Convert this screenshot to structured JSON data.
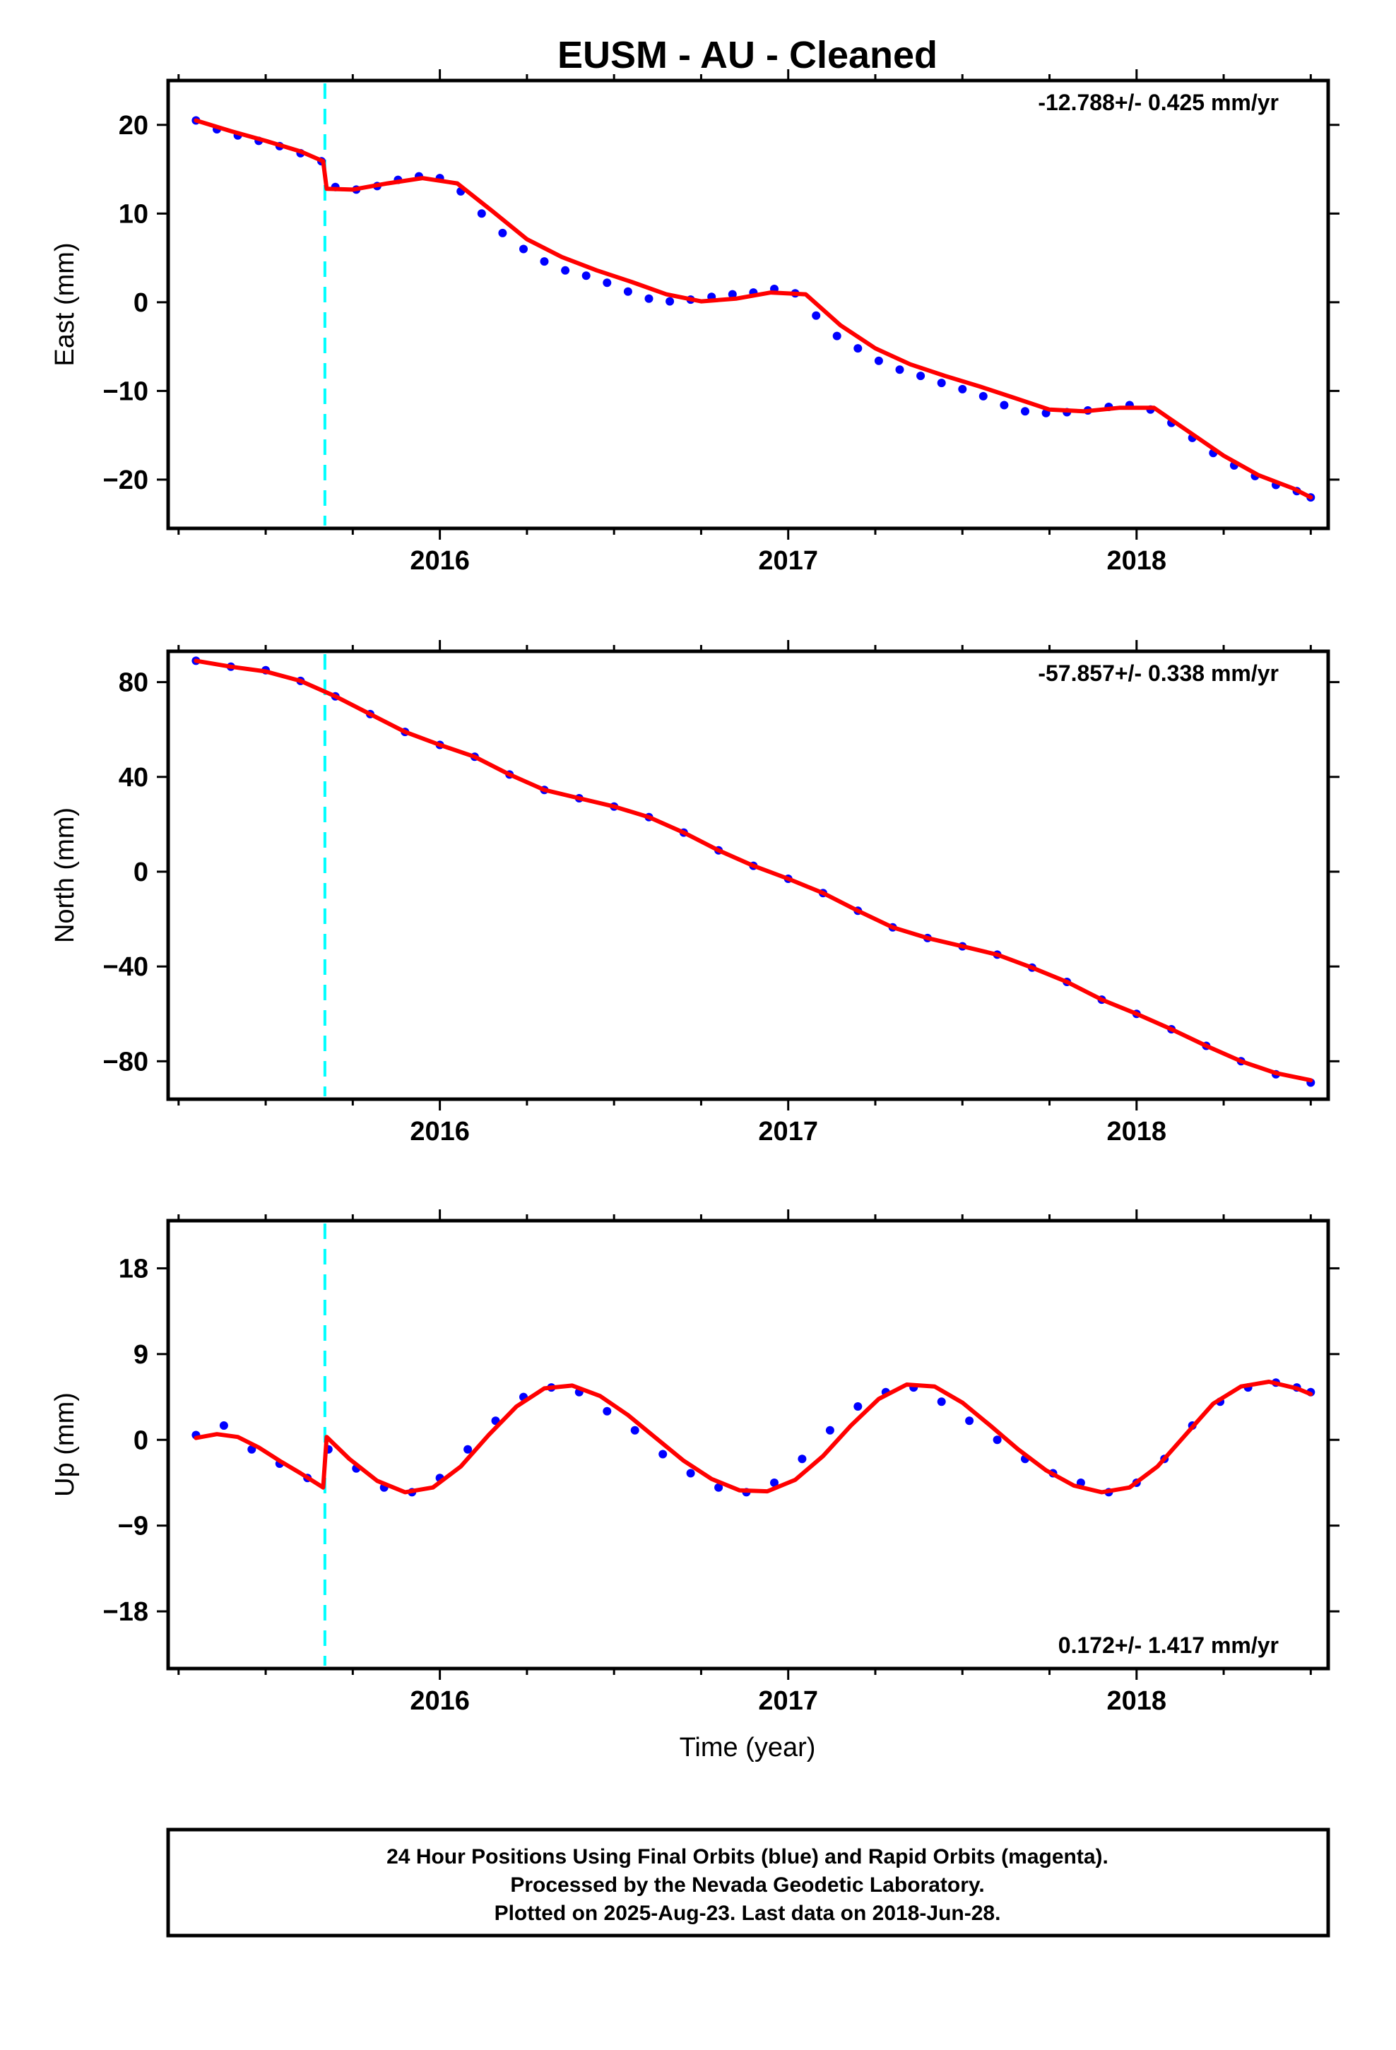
{
  "title": "EUSM  - AU - Cleaned",
  "colors": {
    "final_orbits": "#0000ff",
    "model_fit": "#ff0000",
    "event_line": "#00ffff",
    "frame": "#000000"
  },
  "footer": {
    "line1": "24 Hour Positions Using Final Orbits (blue) and Rapid Orbits (magenta).",
    "line2": "Processed by the Nevada Geodetic Laboratory.",
    "line3": "Plotted on 2025-Aug-23. Last data on 2018-Jun-28."
  },
  "chart_data": [
    {
      "type": "scatter",
      "component": "east",
      "title": "EUSM  - AU - Cleaned",
      "xlabel": "",
      "ylabel": "East (mm)",
      "xlim": [
        2015.22,
        2018.55
      ],
      "ylim": [
        -25.5,
        25
      ],
      "xticks": [
        2016,
        2017,
        2018
      ],
      "xtick_labels": [
        "2016",
        "2017",
        "2018"
      ],
      "yticks": [
        -20,
        -10,
        0,
        10,
        20
      ],
      "ytick_labels": [
        "−20",
        "−10",
        "0",
        "10",
        "20"
      ],
      "rate_text": "-12.788+/- 0.425 mm/yr",
      "rate_position": "top-right",
      "event_line_x": 2015.67,
      "grid": false,
      "series": [
        {
          "name": "Final Orbits",
          "kind": "points",
          "x": [
            2015.3,
            2015.36,
            2015.42,
            2015.48,
            2015.54,
            2015.6,
            2015.66,
            2015.7,
            2015.76,
            2015.82,
            2015.88,
            2015.94,
            2016.0,
            2016.06,
            2016.12,
            2016.18,
            2016.24,
            2016.3,
            2016.36,
            2016.42,
            2016.48,
            2016.54,
            2016.6,
            2016.66,
            2016.72,
            2016.78,
            2016.84,
            2016.9,
            2016.96,
            2017.02,
            2017.08,
            2017.14,
            2017.2,
            2017.26,
            2017.32,
            2017.38,
            2017.44,
            2017.5,
            2017.56,
            2017.62,
            2017.68,
            2017.74,
            2017.8,
            2017.86,
            2017.92,
            2017.98,
            2018.04,
            2018.1,
            2018.16,
            2018.22,
            2018.28,
            2018.34,
            2018.4,
            2018.46,
            2018.5
          ],
          "y": [
            20.5,
            19.5,
            18.8,
            18.2,
            17.6,
            16.8,
            15.9,
            13,
            12.7,
            13.1,
            13.8,
            14.2,
            14,
            12.5,
            10,
            7.8,
            6,
            4.6,
            3.6,
            3,
            2.2,
            1.2,
            0.4,
            0.1,
            0.3,
            0.6,
            0.9,
            1.1,
            1.5,
            1,
            -1.5,
            -3.8,
            -5.2,
            -6.6,
            -7.6,
            -8.3,
            -9.1,
            -9.8,
            -10.6,
            -11.6,
            -12.3,
            -12.5,
            -12.4,
            -12.2,
            -11.8,
            -11.6,
            -12.1,
            -13.6,
            -15.3,
            -17,
            -18.4,
            -19.6,
            -20.6,
            -21.3,
            -22
          ]
        },
        {
          "name": "Model",
          "kind": "line",
          "x": [
            2015.3,
            2015.4,
            2015.5,
            2015.6,
            2015.665,
            2015.675,
            2015.75,
            2015.85,
            2015.95,
            2016.05,
            2016.15,
            2016.25,
            2016.35,
            2016.45,
            2016.55,
            2016.65,
            2016.75,
            2016.85,
            2016.95,
            2017.05,
            2017.15,
            2017.25,
            2017.35,
            2017.45,
            2017.55,
            2017.65,
            2017.75,
            2017.85,
            2017.95,
            2018.05,
            2018.15,
            2018.25,
            2018.35,
            2018.45,
            2018.5
          ],
          "y": [
            20.5,
            19.3,
            18.2,
            17,
            15.9,
            12.8,
            12.7,
            13.4,
            14,
            13.4,
            10.3,
            7.1,
            5.1,
            3.6,
            2.3,
            0.9,
            0.1,
            0.4,
            1.1,
            0.9,
            -2.6,
            -5.2,
            -7,
            -8.3,
            -9.5,
            -10.8,
            -12.1,
            -12.3,
            -11.9,
            -11.9,
            -14.6,
            -17.3,
            -19.5,
            -21,
            -22
          ]
        }
      ]
    },
    {
      "type": "scatter",
      "component": "north",
      "xlabel": "",
      "ylabel": "North (mm)",
      "xlim": [
        2015.22,
        2018.55
      ],
      "ylim": [
        -96,
        93
      ],
      "xticks": [
        2016,
        2017,
        2018
      ],
      "xtick_labels": [
        "2016",
        "2017",
        "2018"
      ],
      "yticks": [
        -80,
        -40,
        0,
        40,
        80
      ],
      "ytick_labels": [
        "−80",
        "−40",
        "0",
        "40",
        "80"
      ],
      "rate_text": "-57.857+/- 0.338 mm/yr",
      "rate_position": "top-right",
      "event_line_x": 2015.67,
      "grid": false,
      "series": [
        {
          "name": "Final Orbits",
          "kind": "points",
          "x": [
            2015.3,
            2015.4,
            2015.5,
            2015.6,
            2015.7,
            2015.8,
            2015.9,
            2016.0,
            2016.1,
            2016.2,
            2016.3,
            2016.4,
            2016.5,
            2016.6,
            2016.7,
            2016.8,
            2016.9,
            2017.0,
            2017.1,
            2017.2,
            2017.3,
            2017.4,
            2017.5,
            2017.6,
            2017.7,
            2017.8,
            2017.9,
            2018.0,
            2018.1,
            2018.2,
            2018.3,
            2018.4,
            2018.5
          ],
          "y": [
            89,
            86.5,
            85,
            80.5,
            74,
            66.5,
            59,
            53.5,
            48.5,
            41,
            34.5,
            31,
            27.5,
            23,
            16.5,
            9,
            2.5,
            -3,
            -9,
            -16.5,
            -23.5,
            -28,
            -31.5,
            -35,
            -40.5,
            -46.5,
            -54,
            -60,
            -66.5,
            -73.5,
            -80,
            -85.5,
            -89
          ]
        },
        {
          "name": "Model",
          "kind": "line",
          "x": [
            2015.3,
            2015.4,
            2015.5,
            2015.6,
            2015.7,
            2015.8,
            2015.9,
            2016.0,
            2016.1,
            2016.2,
            2016.3,
            2016.4,
            2016.5,
            2016.6,
            2016.7,
            2016.8,
            2016.9,
            2017.0,
            2017.1,
            2017.2,
            2017.3,
            2017.4,
            2017.5,
            2017.6,
            2017.7,
            2017.8,
            2017.9,
            2018.0,
            2018.1,
            2018.2,
            2018.3,
            2018.4,
            2018.5
          ],
          "y": [
            89,
            86.5,
            84.5,
            80.5,
            74,
            66.5,
            59,
            53.5,
            48.5,
            41,
            34.5,
            31,
            27.5,
            23,
            16.5,
            9,
            2.5,
            -3,
            -9,
            -16.5,
            -23.5,
            -28,
            -31.5,
            -35,
            -40.5,
            -46.5,
            -54,
            -60,
            -66.5,
            -73.5,
            -80,
            -85,
            -88
          ]
        }
      ]
    },
    {
      "type": "scatter",
      "component": "up",
      "xlabel": "Time (year)",
      "ylabel": "Up (mm)",
      "xlim": [
        2015.22,
        2018.55
      ],
      "ylim": [
        -24,
        23
      ],
      "xticks": [
        2016,
        2017,
        2018
      ],
      "xtick_labels": [
        "2016",
        "2017",
        "2018"
      ],
      "yticks": [
        -18,
        -9,
        0,
        9,
        18
      ],
      "ytick_labels": [
        "−18",
        "−9",
        "0",
        "9",
        "18"
      ],
      "rate_text": "0.172+/- 1.417 mm/yr",
      "rate_position": "bottom-right",
      "event_line_x": 2015.67,
      "grid": false,
      "series": [
        {
          "name": "Final Orbits",
          "kind": "points",
          "x": [
            2015.3,
            2015.38,
            2015.46,
            2015.54,
            2015.62,
            2015.68,
            2015.76,
            2015.84,
            2015.92,
            2016.0,
            2016.08,
            2016.16,
            2016.24,
            2016.32,
            2016.4,
            2016.48,
            2016.56,
            2016.64,
            2016.72,
            2016.8,
            2016.88,
            2016.96,
            2017.04,
            2017.12,
            2017.2,
            2017.28,
            2017.36,
            2017.44,
            2017.52,
            2017.6,
            2017.68,
            2017.76,
            2017.84,
            2017.92,
            2018.0,
            2018.08,
            2018.16,
            2018.24,
            2018.32,
            2018.4,
            2018.46,
            2018.5
          ],
          "y": [
            0.5,
            1.5,
            -1,
            -2.5,
            -4,
            -1,
            -3,
            -5,
            -5.5,
            -4,
            -1,
            2,
            4.5,
            5.5,
            5,
            3,
            1,
            -1.5,
            -3.5,
            -5,
            -5.5,
            -4.5,
            -2,
            1,
            3.5,
            5,
            5.5,
            4,
            2,
            0,
            -2,
            -3.5,
            -4.5,
            -5.5,
            -4.5,
            -2,
            1.5,
            4,
            5.5,
            6,
            5.5,
            5
          ]
        },
        {
          "name": "Model",
          "kind": "line",
          "x": [
            2015.3,
            2015.36,
            2015.42,
            2015.48,
            2015.54,
            2015.6,
            2015.665,
            2015.675,
            2015.74,
            2015.82,
            2015.9,
            2015.98,
            2016.06,
            2016.14,
            2016.22,
            2016.3,
            2016.38,
            2016.46,
            2016.54,
            2016.62,
            2016.7,
            2016.78,
            2016.86,
            2016.94,
            2017.02,
            2017.1,
            2017.18,
            2017.26,
            2017.34,
            2017.42,
            2017.5,
            2017.58,
            2017.66,
            2017.74,
            2017.82,
            2017.9,
            2017.98,
            2018.06,
            2018.14,
            2018.22,
            2018.3,
            2018.38,
            2018.46,
            2018.5
          ],
          "y": [
            0.2,
            0.6,
            0.3,
            -0.8,
            -2.2,
            -3.5,
            -5,
            0.3,
            -2,
            -4.3,
            -5.5,
            -5,
            -2.8,
            0.5,
            3.5,
            5.4,
            5.7,
            4.6,
            2.6,
            0.2,
            -2.2,
            -4.1,
            -5.3,
            -5.4,
            -4.2,
            -1.7,
            1.5,
            4.3,
            5.8,
            5.6,
            3.9,
            1.5,
            -1,
            -3.2,
            -4.8,
            -5.5,
            -5,
            -2.8,
            0.5,
            3.8,
            5.6,
            6.1,
            5.4,
            4.8
          ]
        }
      ]
    }
  ]
}
